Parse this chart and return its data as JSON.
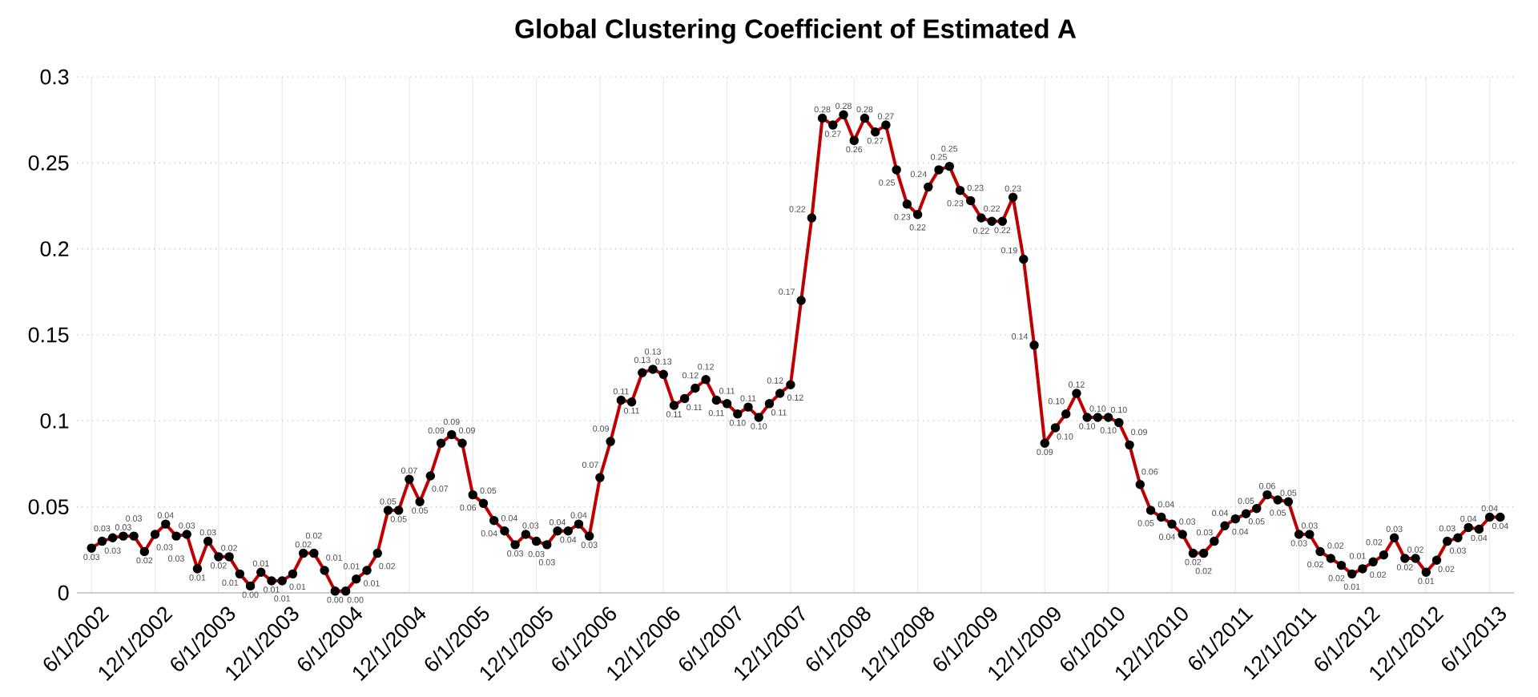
{
  "chart_data": {
    "type": "line",
    "title": "Global Clustering Coefficient of Estimated A",
    "x": [
      "2002-06",
      "2002-07",
      "2002-08",
      "2002-09",
      "2002-10",
      "2002-11",
      "2002-12",
      "2003-01",
      "2003-02",
      "2003-03",
      "2003-04",
      "2003-05",
      "2003-06",
      "2003-07",
      "2003-08",
      "2003-09",
      "2003-10",
      "2003-11",
      "2003-12",
      "2004-01",
      "2004-02",
      "2004-03",
      "2004-04",
      "2004-05",
      "2004-06",
      "2004-07",
      "2004-08",
      "2004-09",
      "2004-10",
      "2004-11",
      "2004-12",
      "2005-01",
      "2005-02",
      "2005-03",
      "2005-04",
      "2005-05",
      "2005-06",
      "2005-07",
      "2005-08",
      "2005-09",
      "2005-10",
      "2005-11",
      "2005-12",
      "2006-01",
      "2006-02",
      "2006-03",
      "2006-04",
      "2006-05",
      "2006-06",
      "2006-07",
      "2006-08",
      "2006-09",
      "2006-10",
      "2006-11",
      "2006-12",
      "2007-01",
      "2007-02",
      "2007-03",
      "2007-04",
      "2007-05",
      "2007-06",
      "2007-07",
      "2007-08",
      "2007-09",
      "2007-10",
      "2007-11",
      "2007-12",
      "2008-01",
      "2008-02",
      "2008-03",
      "2008-04",
      "2008-05",
      "2008-06",
      "2008-07",
      "2008-08",
      "2008-09",
      "2008-10",
      "2008-11",
      "2008-12",
      "2009-01",
      "2009-02",
      "2009-03",
      "2009-04",
      "2009-05",
      "2009-06",
      "2009-07",
      "2009-08",
      "2009-09",
      "2009-10",
      "2009-11",
      "2009-12",
      "2010-01",
      "2010-02",
      "2010-03",
      "2010-04",
      "2010-05",
      "2010-06",
      "2010-07",
      "2010-08",
      "2010-09",
      "2010-10",
      "2010-11",
      "2010-12",
      "2011-01",
      "2011-02",
      "2011-03",
      "2011-04",
      "2011-05",
      "2011-06",
      "2011-07",
      "2011-08",
      "2011-09",
      "2011-10",
      "2011-11",
      "2011-12",
      "2012-01",
      "2012-02",
      "2012-03",
      "2012-04",
      "2012-05",
      "2012-06",
      "2012-07",
      "2012-08",
      "2012-09",
      "2012-10",
      "2012-11",
      "2012-12",
      "2013-01",
      "2013-02",
      "2013-03",
      "2013-04",
      "2013-05",
      "2013-06",
      "2013-07"
    ],
    "series": [
      {
        "color": "#c00000",
        "values": [
          0.026,
          0.03,
          0.032,
          0.033,
          0.033,
          0.024,
          0.034,
          0.04,
          0.033,
          0.034,
          0.014,
          0.03,
          0.021,
          0.021,
          0.011,
          0.004,
          0.012,
          0.007,
          0.007,
          0.011,
          0.023,
          0.023,
          0.013,
          0.001,
          0.001,
          0.008,
          0.013,
          0.023,
          0.048,
          0.048,
          0.066,
          0.053,
          0.068,
          0.087,
          0.092,
          0.087,
          0.057,
          0.052,
          0.042,
          0.036,
          0.028,
          0.034,
          0.03,
          0.028,
          0.036,
          0.036,
          0.04,
          0.033,
          0.067,
          0.088,
          0.112,
          0.111,
          0.128,
          0.13,
          0.127,
          0.109,
          0.113,
          0.119,
          0.124,
          0.112,
          0.11,
          0.104,
          0.108,
          0.102,
          0.11,
          0.116,
          0.121,
          0.17,
          0.218,
          0.276,
          0.272,
          0.278,
          0.263,
          0.276,
          0.268,
          0.272,
          0.246,
          0.226,
          0.22,
          0.236,
          0.246,
          0.248,
          0.234,
          0.228,
          0.218,
          0.216,
          0.216,
          0.23,
          0.194,
          0.144,
          0.087,
          0.096,
          0.104,
          0.116,
          0.102,
          0.102,
          0.102,
          0.099,
          0.086,
          0.063,
          0.048,
          0.044,
          0.04,
          0.034,
          0.023,
          0.023,
          0.03,
          0.039,
          0.043,
          0.046,
          0.049,
          0.057,
          0.054,
          0.053,
          0.034,
          0.034,
          0.024,
          0.02,
          0.016,
          0.011,
          0.014,
          0.018,
          0.022,
          0.032,
          0.02,
          0.02,
          0.012,
          0.019,
          0.03,
          0.032,
          0.038,
          0.037,
          0.044,
          0.044
        ],
        "value_labels": [
          "0.03",
          "0.03",
          "0.03",
          "0.03",
          "0.03",
          "0.02",
          "0.03",
          "0.04",
          "0.03",
          "0.03",
          "0.01",
          "0.03",
          "0.02",
          "0.02",
          "0.01",
          "0.00",
          "0.01",
          "0.01",
          "0.01",
          "0.01",
          "0.02",
          "0.02",
          "0.01",
          "0.00",
          "0.00",
          "0.01",
          "0.01",
          "0.02",
          "0.05",
          "0.05",
          "0.07",
          "0.05",
          "0.07",
          "0.09",
          "0.09",
          "0.09",
          "0.06",
          "0.05",
          "0.04",
          "0.04",
          "0.03",
          "0.03",
          "0.03",
          "0.03",
          "0.04",
          "0.04",
          "0.04",
          "0.03",
          "0.07",
          "0.09",
          "0.11",
          "0.11",
          "0.13",
          "0.13",
          "0.13",
          "0.11",
          "0.11",
          "0.12",
          "0.12",
          "0.11",
          "0.11",
          "0.10",
          "0.11",
          "0.10",
          "0.11",
          "0.12",
          "0.12",
          "0.17",
          "0.22",
          "0.28",
          "0.27",
          "0.28",
          "0.26",
          "0.28",
          "0.27",
          "0.27",
          "0.25",
          "0.23",
          "0.22",
          "0.24",
          "0.25",
          "0.25",
          "0.23",
          "0.23",
          "0.22",
          "0.22",
          "0.22",
          "0.23",
          "0.19",
          "0.14",
          "0.09",
          "0.10",
          "0.10",
          "0.12",
          "0.10",
          "0.10",
          "0.10",
          "0.10",
          "0.09",
          "0.06",
          "0.05",
          "0.04",
          "0.04",
          "0.03",
          "0.02",
          "0.02",
          "0.03",
          "0.04",
          "0.04",
          "0.05",
          "0.05",
          "0.06",
          "0.05",
          "0.05",
          "0.03",
          "0.03",
          "0.02",
          "0.02",
          "0.02",
          "0.01",
          "0.01",
          "0.02",
          "0.02",
          "0.03",
          "0.02",
          "0.02",
          "0.01",
          "0.02",
          "0.03",
          "0.03",
          "0.04",
          "0.04",
          "0.04",
          "0.04"
        ]
      }
    ],
    "xlim": [
      "2002-04-20",
      "2013-08-10"
    ],
    "xticks": [
      {
        "value": "2002-06-01",
        "label": "6/1/2002"
      },
      {
        "value": "2002-12-01",
        "label": "12/1/2002"
      },
      {
        "value": "2003-06-01",
        "label": "6/1/2003"
      },
      {
        "value": "2003-12-01",
        "label": "12/1/2003"
      },
      {
        "value": "2004-06-01",
        "label": "6/1/2004"
      },
      {
        "value": "2004-12-01",
        "label": "12/1/2004"
      },
      {
        "value": "2005-06-01",
        "label": "6/1/2005"
      },
      {
        "value": "2005-12-01",
        "label": "12/1/2005"
      },
      {
        "value": "2006-06-01",
        "label": "6/1/2006"
      },
      {
        "value": "2006-12-01",
        "label": "12/1/2006"
      },
      {
        "value": "2007-06-01",
        "label": "6/1/2007"
      },
      {
        "value": "2007-12-01",
        "label": "12/1/2007"
      },
      {
        "value": "2008-06-01",
        "label": "6/1/2008"
      },
      {
        "value": "2008-12-01",
        "label": "12/1/2008"
      },
      {
        "value": "2009-06-01",
        "label": "6/1/2009"
      },
      {
        "value": "2009-12-01",
        "label": "12/1/2009"
      },
      {
        "value": "2010-06-01",
        "label": "6/1/2010"
      },
      {
        "value": "2010-12-01",
        "label": "12/1/2010"
      },
      {
        "value": "2011-06-01",
        "label": "6/1/2011"
      },
      {
        "value": "2011-12-01",
        "label": "12/1/2011"
      },
      {
        "value": "2012-06-01",
        "label": "6/1/2012"
      },
      {
        "value": "2012-12-01",
        "label": "12/1/2012"
      },
      {
        "value": "2013-06-01",
        "label": "6/1/2013"
      }
    ],
    "ylim": [
      0,
      0.3
    ],
    "yticks": [
      0,
      0.05,
      0.1,
      0.15,
      0.2,
      0.25,
      0.3
    ],
    "grid": true,
    "marker": "circle",
    "line_style": "solid"
  }
}
